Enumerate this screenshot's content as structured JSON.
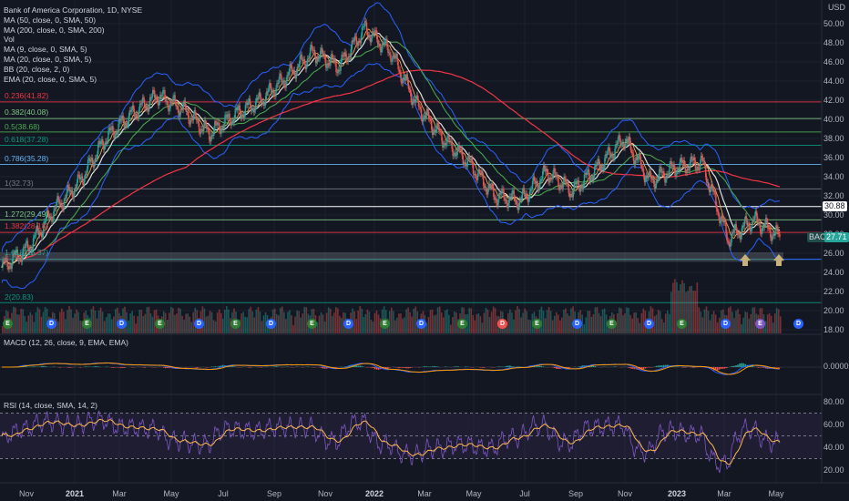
{
  "title": "Bank of America Corporation, 1D, NYSE",
  "currency": "USD",
  "indicators": [
    "MA (50, close, 0, SMA, 50)",
    "MA (200, close, 0, SMA, 200)",
    "Vol",
    "MA (9, close, 0, SMA, 5)",
    "MA (20, close, 0, SMA, 5)",
    "BB (20, close, 2, 0)",
    "EMA (20, close, 0, SMA, 5)"
  ],
  "fib_levels": [
    {
      "label": "0.236(41.82)",
      "value": 41.82,
      "color": "#f23645"
    },
    {
      "label": "0.382(40.08)",
      "value": 40.08,
      "color": "#81c784"
    },
    {
      "label": "0.5(38.68)",
      "value": 38.68,
      "color": "#4caf50"
    },
    {
      "label": "0.618(37.28)",
      "value": 37.28,
      "color": "#089981"
    },
    {
      "label": "0.786(35.28)",
      "value": 35.28,
      "color": "#64b5f6"
    },
    {
      "label": "1(32.73)",
      "value": 32.73,
      "color": "#787b86"
    },
    {
      "label": "1.272(29.49)",
      "value": 29.49,
      "color": "#81c784"
    },
    {
      "label": "1.382(28.18)",
      "value": 28.18,
      "color": "#f23645"
    },
    {
      "label": "1.618(25.37)",
      "value": 25.37,
      "color": "#26a69a"
    },
    {
      "label": "2(20.83)",
      "value": 20.83,
      "color": "#089981"
    }
  ],
  "price_axis": [
    "50.00",
    "48.00",
    "46.00",
    "44.00",
    "42.00",
    "40.00",
    "38.00",
    "36.00",
    "34.00",
    "32.00",
    "30.00",
    "28.00",
    "26.00",
    "24.00",
    "22.00",
    "20.00",
    "18.00"
  ],
  "price_tags": {
    "level": "30.88",
    "symbol": "BAC",
    "last": "27.71"
  },
  "macd": {
    "title": "MACD (12, 26, close, 9, EMA, EMA)",
    "axis": [
      "0.0000"
    ]
  },
  "rsi": {
    "title": "RSI (14, close, SMA, 14, 2)",
    "axis": [
      "80.00",
      "60.00",
      "40.00",
      "20.00"
    ]
  },
  "time_axis": [
    "Nov",
    "2021",
    "Mar",
    "May",
    "Jul",
    "Sep",
    "Nov",
    "2022",
    "Mar",
    "May",
    "Jul",
    "Sep",
    "Nov",
    "2023",
    "Mar",
    "May"
  ],
  "chart_data": {
    "type": "line",
    "title": "Bank of America Corporation, 1D, NYSE",
    "x": [
      "Nov 2020",
      "Dec 2020",
      "Jan 2021",
      "Feb 2021",
      "Mar 2021",
      "Apr 2021",
      "May 2021",
      "Jun 2021",
      "Jul 2021",
      "Aug 2021",
      "Sep 2021",
      "Oct 2021",
      "Nov 2021",
      "Dec 2021",
      "Jan 2022",
      "Feb 2022",
      "Mar 2022",
      "Apr 2022",
      "May 2022",
      "Jun 2022",
      "Jul 2022",
      "Aug 2022",
      "Sep 2022",
      "Oct 2022",
      "Nov 2022",
      "Dec 2022",
      "Jan 2023",
      "Feb 2023",
      "Mar 2023",
      "Apr 2023",
      "May 2023"
    ],
    "series": [
      {
        "name": "BAC",
        "values": [
          24.5,
          26.5,
          30.5,
          33.5,
          38.0,
          40.5,
          42.5,
          41.0,
          38.5,
          40.5,
          42.0,
          44.5,
          47.0,
          45.5,
          49.5,
          47.0,
          41.5,
          38.0,
          35.5,
          32.0,
          31.5,
          34.5,
          32.5,
          35.0,
          38.0,
          33.5,
          35.0,
          35.5,
          27.5,
          29.5,
          27.7
        ]
      }
    ],
    "ylim": [
      17,
      52
    ],
    "grid": true,
    "fib_retracement": [
      41.82,
      40.08,
      38.68,
      37.28,
      35.28,
      32.73,
      29.49,
      28.18,
      25.37,
      20.83
    ]
  }
}
